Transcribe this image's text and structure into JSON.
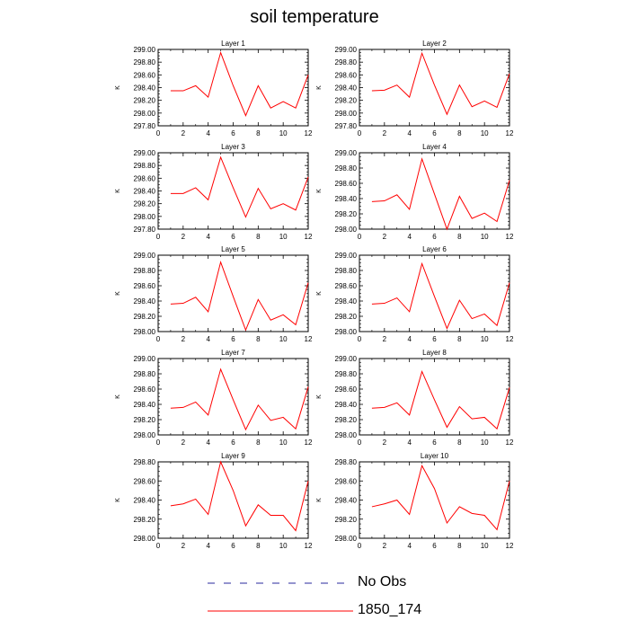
{
  "title": "soil temperature",
  "colors": {
    "model": "#ff0000",
    "obs": "#2a2a9c",
    "axis": "#000000"
  },
  "legend": [
    {
      "label": "No Obs",
      "style": "dashed",
      "color": "#2a2a9c"
    },
    {
      "label": "1850_174",
      "style": "solid",
      "color": "#ff0000"
    }
  ],
  "chart_data": [
    {
      "type": "line",
      "title": "Layer 1",
      "ylabel": "K",
      "xlim": [
        0,
        12
      ],
      "ylim": [
        297.8,
        299.0
      ],
      "xticks": [
        0,
        2,
        4,
        6,
        8,
        10,
        12
      ],
      "yticks": [
        297.8,
        298.0,
        298.2,
        298.4,
        298.6,
        298.8,
        299.0
      ],
      "x": [
        1,
        2,
        3,
        4,
        5,
        6,
        7,
        8,
        9,
        10,
        11,
        12
      ],
      "series": [
        {
          "name": "1850_174",
          "values": [
            298.35,
            298.35,
            298.43,
            298.25,
            298.95,
            298.43,
            297.96,
            298.43,
            298.08,
            298.18,
            298.08,
            298.6
          ]
        }
      ]
    },
    {
      "type": "line",
      "title": "Layer 2",
      "ylabel": "K",
      "xlim": [
        0,
        12
      ],
      "ylim": [
        297.8,
        299.0
      ],
      "xticks": [
        0,
        2,
        4,
        6,
        8,
        10,
        12
      ],
      "yticks": [
        297.8,
        298.0,
        298.2,
        298.4,
        298.6,
        298.8,
        299.0
      ],
      "x": [
        1,
        2,
        3,
        4,
        5,
        6,
        7,
        8,
        9,
        10,
        11,
        12
      ],
      "series": [
        {
          "name": "1850_174",
          "values": [
            298.35,
            298.36,
            298.44,
            298.25,
            298.94,
            298.44,
            297.98,
            298.44,
            298.1,
            298.19,
            298.09,
            298.62
          ]
        }
      ]
    },
    {
      "type": "line",
      "title": "Layer 3",
      "ylabel": "K",
      "xlim": [
        0,
        12
      ],
      "ylim": [
        297.8,
        299.0
      ],
      "xticks": [
        0,
        2,
        4,
        6,
        8,
        10,
        12
      ],
      "yticks": [
        297.8,
        298.0,
        298.2,
        298.4,
        298.6,
        298.8,
        299.0
      ],
      "x": [
        1,
        2,
        3,
        4,
        5,
        6,
        7,
        8,
        9,
        10,
        11,
        12
      ],
      "series": [
        {
          "name": "1850_174",
          "values": [
            298.36,
            298.36,
            298.45,
            298.26,
            298.93,
            298.45,
            297.99,
            298.44,
            298.12,
            298.2,
            298.1,
            298.62
          ]
        }
      ]
    },
    {
      "type": "line",
      "title": "Layer 4",
      "ylabel": "K",
      "xlim": [
        0,
        12
      ],
      "ylim": [
        298.0,
        299.0
      ],
      "xticks": [
        0,
        2,
        4,
        6,
        8,
        10,
        12
      ],
      "yticks": [
        298.0,
        298.2,
        298.4,
        298.6,
        298.8,
        299.0
      ],
      "x": [
        1,
        2,
        3,
        4,
        5,
        6,
        7,
        8,
        9,
        10,
        11,
        12
      ],
      "series": [
        {
          "name": "1850_174",
          "values": [
            298.36,
            298.37,
            298.45,
            298.26,
            298.92,
            298.46,
            298.0,
            298.43,
            298.14,
            298.21,
            298.1,
            298.64
          ]
        }
      ]
    },
    {
      "type": "line",
      "title": "Layer 5",
      "ylabel": "K",
      "xlim": [
        0,
        12
      ],
      "ylim": [
        298.0,
        299.0
      ],
      "xticks": [
        0,
        2,
        4,
        6,
        8,
        10,
        12
      ],
      "yticks": [
        298.0,
        298.2,
        298.4,
        298.6,
        298.8,
        299.0
      ],
      "x": [
        1,
        2,
        3,
        4,
        5,
        6,
        7,
        8,
        9,
        10,
        11,
        12
      ],
      "series": [
        {
          "name": "1850_174",
          "values": [
            298.36,
            298.37,
            298.45,
            298.26,
            298.91,
            298.46,
            298.02,
            298.42,
            298.15,
            298.22,
            298.09,
            298.64
          ]
        }
      ]
    },
    {
      "type": "line",
      "title": "Layer 6",
      "ylabel": "K",
      "xlim": [
        0,
        12
      ],
      "ylim": [
        298.0,
        299.0
      ],
      "xticks": [
        0,
        2,
        4,
        6,
        8,
        10,
        12
      ],
      "yticks": [
        298.0,
        298.2,
        298.4,
        298.6,
        298.8,
        299.0
      ],
      "x": [
        1,
        2,
        3,
        4,
        5,
        6,
        7,
        8,
        9,
        10,
        11,
        12
      ],
      "series": [
        {
          "name": "1850_174",
          "values": [
            298.36,
            298.37,
            298.44,
            298.26,
            298.89,
            298.46,
            298.04,
            298.41,
            298.17,
            298.23,
            298.08,
            298.64
          ]
        }
      ]
    },
    {
      "type": "line",
      "title": "Layer 7",
      "ylabel": "K",
      "xlim": [
        0,
        12
      ],
      "ylim": [
        298.0,
        299.0
      ],
      "xticks": [
        0,
        2,
        4,
        6,
        8,
        10,
        12
      ],
      "yticks": [
        298.0,
        298.2,
        298.4,
        298.6,
        298.8,
        299.0
      ],
      "x": [
        1,
        2,
        3,
        4,
        5,
        6,
        7,
        8,
        9,
        10,
        11,
        12
      ],
      "series": [
        {
          "name": "1850_174",
          "values": [
            298.35,
            298.36,
            298.43,
            298.26,
            298.86,
            298.46,
            298.07,
            298.39,
            298.19,
            298.23,
            298.08,
            298.63
          ]
        }
      ]
    },
    {
      "type": "line",
      "title": "Layer 8",
      "ylabel": "K",
      "xlim": [
        0,
        12
      ],
      "ylim": [
        298.0,
        299.0
      ],
      "xticks": [
        0,
        2,
        4,
        6,
        8,
        10,
        12
      ],
      "yticks": [
        298.0,
        298.2,
        298.4,
        298.6,
        298.8,
        299.0
      ],
      "x": [
        1,
        2,
        3,
        4,
        5,
        6,
        7,
        8,
        9,
        10,
        11,
        12
      ],
      "series": [
        {
          "name": "1850_174",
          "values": [
            298.35,
            298.36,
            298.42,
            298.26,
            298.83,
            298.46,
            298.1,
            298.37,
            298.21,
            298.23,
            298.08,
            298.62
          ]
        }
      ]
    },
    {
      "type": "line",
      "title": "Layer 9",
      "ylabel": "K",
      "xlim": [
        0,
        12
      ],
      "ylim": [
        298.0,
        298.8
      ],
      "xticks": [
        0,
        2,
        4,
        6,
        8,
        10,
        12
      ],
      "yticks": [
        298.0,
        298.2,
        298.4,
        298.6,
        298.8
      ],
      "x": [
        1,
        2,
        3,
        4,
        5,
        6,
        7,
        8,
        9,
        10,
        11,
        12
      ],
      "series": [
        {
          "name": "1850_174",
          "values": [
            298.34,
            298.36,
            298.41,
            298.25,
            298.8,
            298.5,
            298.13,
            298.35,
            298.24,
            298.24,
            298.08,
            298.6
          ]
        }
      ]
    },
    {
      "type": "line",
      "title": "Layer 10",
      "ylabel": "K",
      "xlim": [
        0,
        12
      ],
      "ylim": [
        298.0,
        298.8
      ],
      "xticks": [
        0,
        2,
        4,
        6,
        8,
        10,
        12
      ],
      "yticks": [
        298.0,
        298.2,
        298.4,
        298.6,
        298.8
      ],
      "x": [
        1,
        2,
        3,
        4,
        5,
        6,
        7,
        8,
        9,
        10,
        11,
        12
      ],
      "series": [
        {
          "name": "1850_174",
          "values": [
            298.33,
            298.36,
            298.4,
            298.25,
            298.76,
            298.52,
            298.16,
            298.33,
            298.26,
            298.24,
            298.09,
            298.6
          ]
        }
      ]
    }
  ]
}
